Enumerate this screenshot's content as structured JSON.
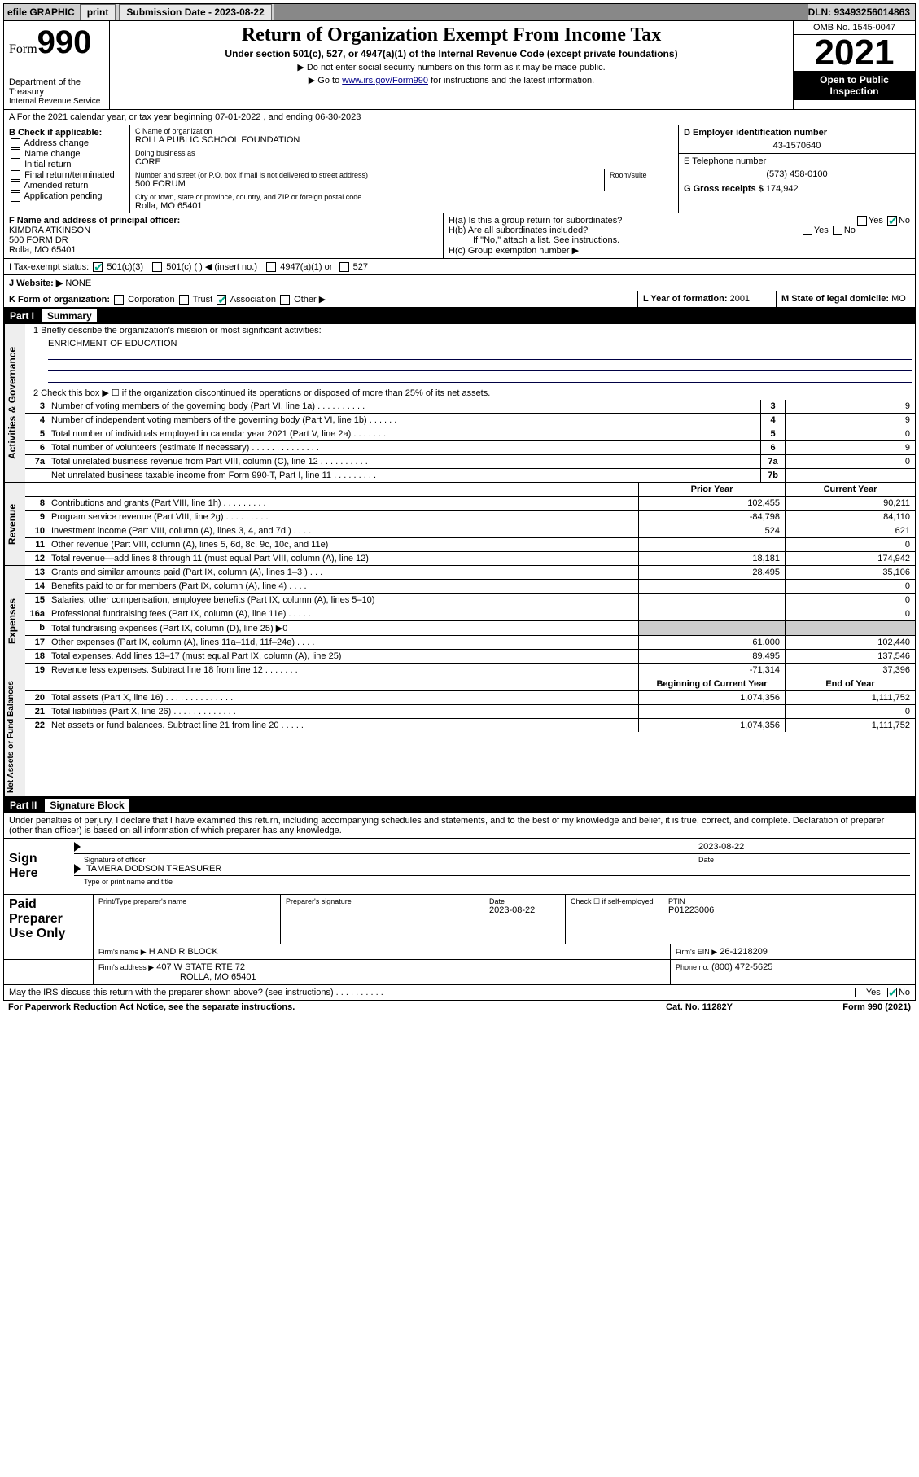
{
  "topbar": {
    "efile_label": "efile GRAPHIC",
    "print_btn": "print",
    "submission_label": "Submission Date - 2023-08-22",
    "dln": "DLN: 93493256014863"
  },
  "header": {
    "form_word": "Form",
    "form_number": "990",
    "dept": "Department of the Treasury",
    "irs": "Internal Revenue Service",
    "title": "Return of Organization Exempt From Income Tax",
    "subtitle": "Under section 501(c), 527, or 4947(a)(1) of the Internal Revenue Code (except private foundations)",
    "note1": "▶ Do not enter social security numbers on this form as it may be made public.",
    "note2_pre": "▶ Go to ",
    "note2_link": "www.irs.gov/Form990",
    "note2_post": " for instructions and the latest information.",
    "omb": "OMB No. 1545-0047",
    "year": "2021",
    "open": "Open to Public Inspection"
  },
  "A": {
    "text": "A For the 2021 calendar year, or tax year beginning 07-01-2022    , and ending 06-30-2023"
  },
  "B": {
    "label": "B Check if applicable:",
    "opts": [
      "Address change",
      "Name change",
      "Initial return",
      "Final return/terminated",
      "Amended return",
      "Application pending"
    ]
  },
  "C": {
    "name_lbl": "C Name of organization",
    "name": "ROLLA PUBLIC SCHOOL FOUNDATION",
    "dba_lbl": "Doing business as",
    "dba": "CORE",
    "addr_lbl": "Number and street (or P.O. box if mail is not delivered to street address)",
    "room_lbl": "Room/suite",
    "addr": "500 FORUM",
    "city_lbl": "City or town, state or province, country, and ZIP or foreign postal code",
    "city": "Rolla, MO  65401"
  },
  "D": {
    "lbl": "D Employer identification number",
    "val": "43-1570640"
  },
  "E": {
    "lbl": "E Telephone number",
    "val": "(573) 458-0100"
  },
  "G": {
    "lbl": "G Gross receipts $",
    "val": "174,942"
  },
  "F": {
    "lbl": "F  Name and address of principal officer:",
    "name": "KIMDRA ATKINSON",
    "addr1": "500 FORM DR",
    "addr2": "Rolla, MO  65401"
  },
  "H": {
    "a": "H(a)  Is this a group return for subordinates?",
    "b": "H(b)  Are all subordinates included?",
    "b_note": "If \"No,\" attach a list. See instructions.",
    "c": "H(c)  Group exemption number ▶",
    "yes": "Yes",
    "no": "No"
  },
  "I": {
    "lbl": "I     Tax-exempt status:",
    "o1": "501(c)(3)",
    "o2": "501(c) (  ) ◀ (insert no.)",
    "o3": "4947(a)(1) or",
    "o4": "527"
  },
  "J": {
    "lbl": "J     Website: ▶",
    "val": "NONE"
  },
  "K": {
    "lbl": "K Form of organization:",
    "o1": "Corporation",
    "o2": "Trust",
    "o3": "Association",
    "o4": "Other ▶"
  },
  "L": {
    "lbl": "L Year of formation:",
    "val": "2001"
  },
  "M": {
    "lbl": "M State of legal domicile:",
    "val": "MO"
  },
  "partI": {
    "lbl": "Part I",
    "title": "Summary"
  },
  "summary": {
    "q1_lbl": "1   Briefly describe the organization's mission or most significant activities:",
    "q1_val": "ENRICHMENT OF EDUCATION",
    "q2": "2   Check this box ▶ ☐  if the organization discontinued its operations or disposed of more than 25% of its net assets.",
    "rows_gov": [
      {
        "n": "3",
        "t": "Number of voting members of the governing body (Part VI, line 1a)   .    .    .    .    .    .    .    .    .    .",
        "box": "3",
        "v": "9"
      },
      {
        "n": "4",
        "t": "Number of independent voting members of the governing body (Part VI, line 1b)   .    .    .    .    .    .",
        "box": "4",
        "v": "9"
      },
      {
        "n": "5",
        "t": "Total number of individuals employed in calendar year 2021 (Part V, line 2a)   .    .    .    .    .    .    .",
        "box": "5",
        "v": "0"
      },
      {
        "n": "6",
        "t": "Total number of volunteers (estimate if necessary)   .    .    .    .    .    .    .    .    .    .    .    .    .    .",
        "box": "6",
        "v": "9"
      },
      {
        "n": "7a",
        "t": "Total unrelated business revenue from Part VIII, column (C), line 12   .    .    .    .    .    .    .    .    .    .",
        "box": "7a",
        "v": "0"
      },
      {
        "n": "",
        "t": "Net unrelated business taxable income from Form 990-T, Part I, line 11   .    .    .    .    .    .    .    .    .",
        "box": "7b",
        "v": ""
      }
    ],
    "hdr_prior": "Prior Year",
    "hdr_curr": "Current Year",
    "rows_rev": [
      {
        "n": "8",
        "t": "Contributions and grants (Part VIII, line 1h)   .    .    .    .    .    .    .    .    .",
        "a": "102,455",
        "b": "90,211"
      },
      {
        "n": "9",
        "t": "Program service revenue (Part VIII, line 2g)   .    .    .    .    .    .    .    .    .",
        "a": "-84,798",
        "b": "84,110"
      },
      {
        "n": "10",
        "t": "Investment income (Part VIII, column (A), lines 3, 4, and 7d )   .    .    .    .",
        "a": "524",
        "b": "621"
      },
      {
        "n": "11",
        "t": "Other revenue (Part VIII, column (A), lines 5, 6d, 8c, 9c, 10c, and 11e)",
        "a": "",
        "b": "0"
      },
      {
        "n": "12",
        "t": "Total revenue—add lines 8 through 11 (must equal Part VIII, column (A), line 12)",
        "a": "18,181",
        "b": "174,942"
      }
    ],
    "rows_exp": [
      {
        "n": "13",
        "t": "Grants and similar amounts paid (Part IX, column (A), lines 1–3 )   .    .    .",
        "a": "28,495",
        "b": "35,106"
      },
      {
        "n": "14",
        "t": "Benefits paid to or for members (Part IX, column (A), line 4)   .    .    .    .",
        "a": "",
        "b": "0"
      },
      {
        "n": "15",
        "t": "Salaries, other compensation, employee benefits (Part IX, column (A), lines 5–10)",
        "a": "",
        "b": "0"
      },
      {
        "n": "16a",
        "t": "Professional fundraising fees (Part IX, column (A), line 11e)   .    .    .    .    .",
        "a": "",
        "b": "0"
      },
      {
        "n": "b",
        "t": "Total fundraising expenses (Part IX, column (D), line 25) ▶0",
        "a": "shade",
        "b": "shade"
      },
      {
        "n": "17",
        "t": "Other expenses (Part IX, column (A), lines 11a–11d, 11f–24e)   .    .    .    .",
        "a": "61,000",
        "b": "102,440"
      },
      {
        "n": "18",
        "t": "Total expenses. Add lines 13–17 (must equal Part IX, column (A), line 25)",
        "a": "89,495",
        "b": "137,546"
      },
      {
        "n": "19",
        "t": "Revenue less expenses. Subtract line 18 from line 12   .    .    .    .    .    .    .",
        "a": "-71,314",
        "b": "37,396"
      }
    ],
    "hdr_beg": "Beginning of Current Year",
    "hdr_end": "End of Year",
    "rows_net": [
      {
        "n": "20",
        "t": "Total assets (Part X, line 16)   .    .    .    .    .    .    .    .    .    .    .    .    .    .",
        "a": "1,074,356",
        "b": "1,111,752"
      },
      {
        "n": "21",
        "t": "Total liabilities (Part X, line 26)   .    .    .    .    .    .    .    .    .    .    .    .    .",
        "a": "",
        "b": "0"
      },
      {
        "n": "22",
        "t": "Net assets or fund balances. Subtract line 21 from line 20   .    .    .    .    .",
        "a": "1,074,356",
        "b": "1,111,752"
      }
    ],
    "vlabels": {
      "gov": "Activities & Governance",
      "rev": "Revenue",
      "exp": "Expenses",
      "net": "Net Assets or Fund Balances"
    }
  },
  "partII": {
    "lbl": "Part II",
    "title": "Signature Block"
  },
  "sig": {
    "decl": "Under penalties of perjury, I declare that I have examined this return, including accompanying schedules and statements, and to the best of my knowledge and belief, it is true, correct, and complete. Declaration of preparer (other than officer) is based on all information of which preparer has any knowledge.",
    "sign_here": "Sign Here",
    "officer_lbl": "Signature of officer",
    "date_lbl": "Date",
    "date_val": "2023-08-22",
    "name": "TAMERA DODSON  TREASURER",
    "name_lbl": "Type or print name and title"
  },
  "prep": {
    "title": "Paid Preparer Use Only",
    "h1": "Print/Type preparer's name",
    "h2": "Preparer's signature",
    "h3": "Date",
    "h3v": "2023-08-22",
    "h4": "Check ☐ if self-employed",
    "h5": "PTIN",
    "h5v": "P01223006",
    "firm_lbl": "Firm's name    ▶",
    "firm": "H AND R BLOCK",
    "ein_lbl": "Firm's EIN ▶",
    "ein": "26-1218209",
    "addr_lbl": "Firm's address ▶",
    "addr1": "407 W STATE RTE 72",
    "addr2": "ROLLA, MO  65401",
    "phone_lbl": "Phone no.",
    "phone": "(800) 472-5625",
    "discuss": "May the IRS discuss this return with the preparer shown above? (see instructions)   .    .    .    .    .    .    .    .    .    .",
    "yes": "Yes",
    "no": "No"
  },
  "footer": {
    "left": "For Paperwork Reduction Act Notice, see the separate instructions.",
    "mid": "Cat. No. 11282Y",
    "right": "Form 990 (2021)"
  }
}
